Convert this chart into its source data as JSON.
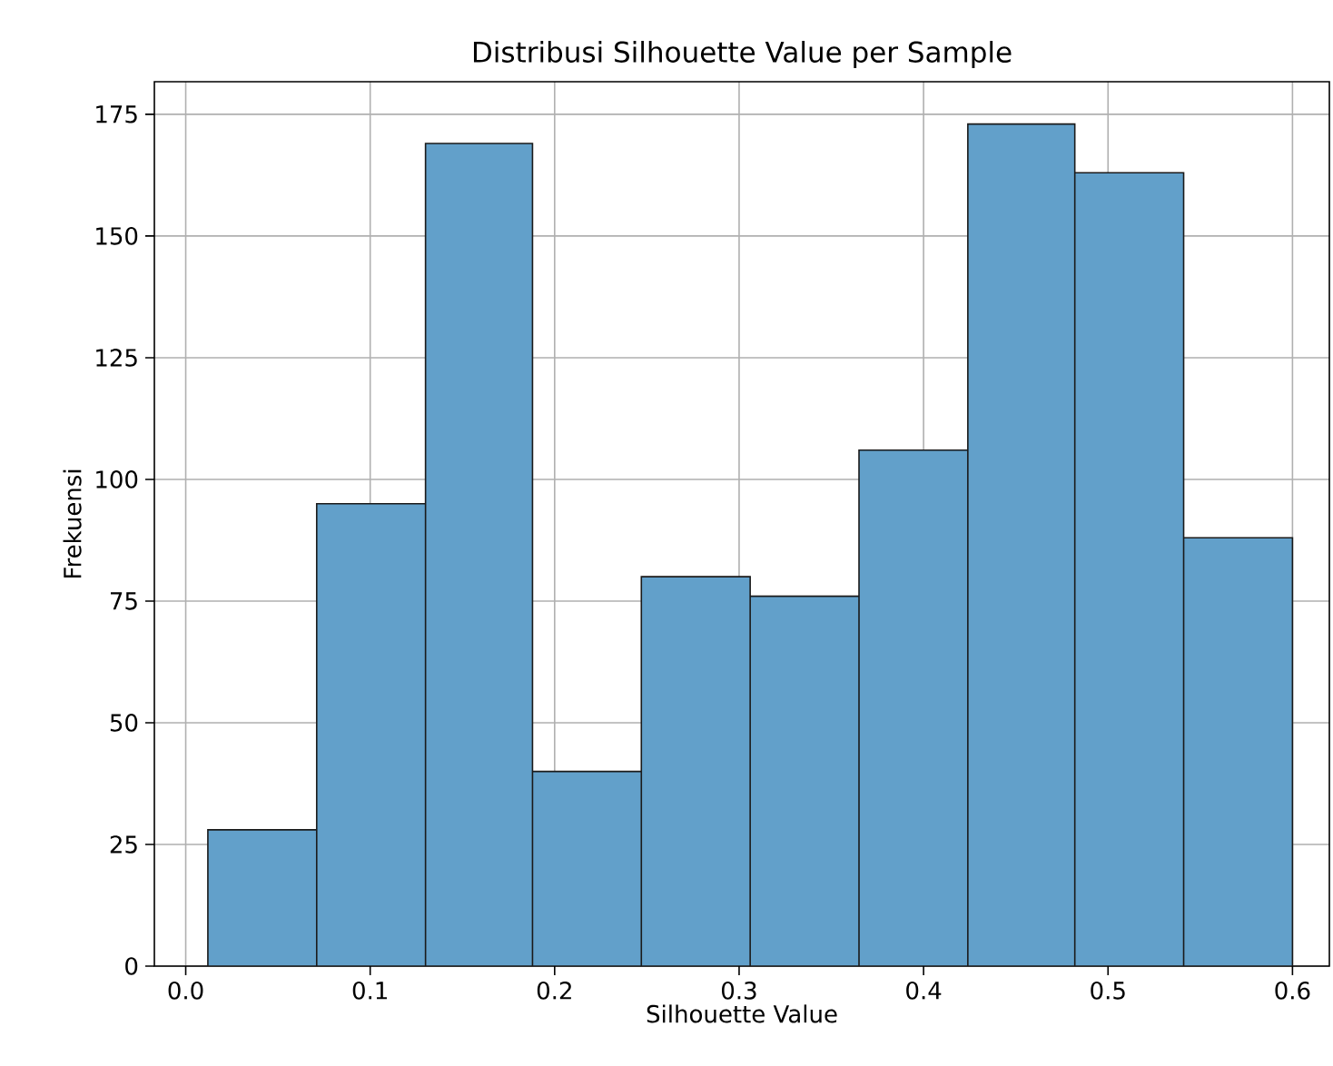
{
  "chart_data": {
    "type": "histogram",
    "title": "Distribusi Silhouette Value per Sample",
    "xlabel": "Silhouette Value",
    "ylabel": "Frekuensi",
    "bins": [
      0.012,
      0.071,
      0.13,
      0.188,
      0.247,
      0.306,
      0.365,
      0.424,
      0.482,
      0.541,
      0.6
    ],
    "values": [
      28,
      95,
      169,
      40,
      80,
      76,
      106,
      173,
      163,
      88
    ],
    "color": "#62a0ca",
    "xlim": [
      -0.017,
      0.62
    ],
    "ylim": [
      0,
      181.7
    ],
    "xticks": [
      {
        "value": 0,
        "label": "0.0"
      },
      0.1,
      0.2,
      0.3,
      0.4,
      0.5,
      0.6
    ],
    "yticks": [
      0,
      25,
      50,
      75,
      100,
      125,
      150,
      175
    ],
    "grid": true
  }
}
